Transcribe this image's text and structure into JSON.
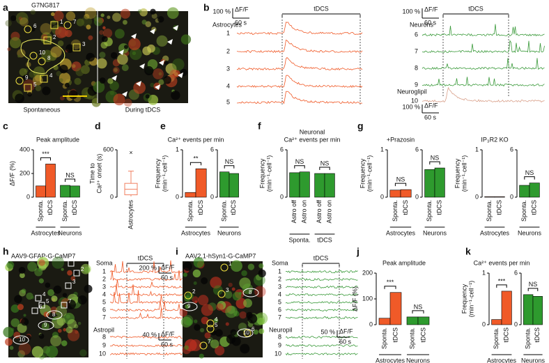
{
  "panel_letters": [
    "a",
    "b",
    "c",
    "d",
    "e",
    "f",
    "g",
    "h",
    "i",
    "j",
    "k"
  ],
  "a": {
    "sample": "G7NG817",
    "left": "Spontaneous",
    "right": "During tDCS",
    "rois": [
      "1",
      "2",
      "3",
      "4",
      "5",
      "6",
      "7",
      "8",
      "9",
      "10"
    ]
  },
  "b": {
    "stimulus": "tDCS",
    "scale_y": "100 %",
    "scale_unit": "ΔF/F",
    "scale_x": "60 s",
    "astro_label": "Astrocytes",
    "astro_traces": [
      "1",
      "2",
      "3",
      "4",
      "5"
    ],
    "neuron_label": "Neurons",
    "neuron_traces": [
      "6",
      "7",
      "8",
      "9"
    ],
    "neuropil_label": "Neuroglipil",
    "neuropil_traces": [
      "10"
    ]
  },
  "h": {
    "construct": "AAV9-GFAP-G-CaMP7",
    "stimulus": "tDCS",
    "soma_label": "Soma",
    "soma_traces": [
      "1",
      "2",
      "3",
      "4",
      "5",
      "6",
      "7"
    ],
    "pil_label": "Astropil",
    "pil_traces": [
      "8",
      "9",
      "10"
    ],
    "scale_y_soma": "200 %",
    "scale_y_pil": "40 %",
    "scale_unit": "ΔF/F",
    "scale_x": "60 s",
    "rois": [
      "1",
      "2",
      "3",
      "4",
      "5",
      "6",
      "7",
      "8",
      "9",
      "10"
    ]
  },
  "i": {
    "construct": "AAV2.1-hSyn1-G-CaMP7",
    "stimulus": "tDCS",
    "soma_label": "Soma",
    "soma_traces": [
      "1",
      "2",
      "3",
      "4",
      "5",
      "6",
      "7"
    ],
    "pil_label": "Neuropil",
    "pil_traces": [
      "8",
      "9",
      "10"
    ],
    "scale_y_pil": "50 %",
    "scale_unit": "ΔF/F",
    "scale_x": "60 s",
    "rois": [
      "1",
      "2",
      "3",
      "4",
      "5",
      "6",
      "7",
      "8",
      "9",
      "10"
    ]
  },
  "chart_data": [
    {
      "type": "bar",
      "title": "Peak amplitude",
      "ylabel": "ΔF/F (%)",
      "ylim": [
        0,
        400
      ],
      "yticks": [
        0,
        200,
        400
      ],
      "groups": [
        {
          "name": "Astrocytes",
          "categories": [
            "Sponta.",
            "tDCS"
          ],
          "values": [
            95,
            280
          ],
          "color": "#f05a28",
          "significance": "***"
        },
        {
          "name": "Neurons",
          "categories": [
            "Sponta.",
            "tDCS"
          ],
          "values": [
            100,
            95
          ],
          "color": "#2e9a2e",
          "significance": "NS"
        }
      ]
    },
    {
      "type": "box",
      "ylabel": [
        "Time to",
        "Ca²⁺ onset (s)"
      ],
      "ylim": [
        0,
        600
      ],
      "yticks": [
        0,
        600
      ],
      "category": "Astrocytes",
      "color": "#f08060",
      "box": {
        "whislo": 10,
        "q1": 30,
        "median": 100,
        "q3": 175,
        "whishi": 330,
        "fliers": [
          560
        ]
      }
    },
    {
      "type": "bar",
      "title": "Ca²⁺ events per min",
      "ylabel": [
        "Frequency",
        "(min⁻¹·cell⁻¹)"
      ],
      "ylim": [
        0,
        1
      ],
      "yticks": [
        0,
        1
      ],
      "groups": [
        {
          "name": "Astrocytes",
          "categories": [
            "Sponta.",
            "tDCS"
          ],
          "values": [
            0.1,
            0.6
          ],
          "color": "#f05a28",
          "significance": "**"
        }
      ]
    },
    {
      "type": "bar",
      "ylim": [
        0,
        6
      ],
      "yticks": [
        0,
        6
      ],
      "groups": [
        {
          "name": "Neurons",
          "categories": [
            "Sponta.",
            "tDCS"
          ],
          "values": [
            3.2,
            3.0
          ],
          "color": "#2e9a2e",
          "significance": "NS"
        }
      ]
    },
    {
      "type": "bar",
      "title": [
        "Neuronal",
        "Ca²⁺ events per min"
      ],
      "ylabel": [
        "Frequency",
        "(min⁻¹·cell⁻¹)"
      ],
      "ylim": [
        0,
        6
      ],
      "yticks": [
        0,
        6
      ],
      "groups": [
        {
          "name": "Sponta.",
          "categories": [
            "Astro off",
            "Astro on"
          ],
          "values": [
            3.1,
            3.2
          ],
          "color": "#2e9a2e",
          "significance": "NS"
        },
        {
          "name": "tDCS",
          "categories": [
            "Astro off",
            "Astro on"
          ],
          "values": [
            3.0,
            3.0
          ],
          "color": "#2e9a2e",
          "significance": "NS"
        }
      ]
    },
    {
      "type": "bar",
      "title": "+Prazosin",
      "ylabel": [
        "Frequency",
        "(min⁻¹·cell⁻¹)"
      ],
      "ylim": [
        0,
        1
      ],
      "yticks": [
        0,
        1
      ],
      "groups": [
        {
          "name": "Astrocytes",
          "categories": [
            "Sponta.",
            "tDCS"
          ],
          "values": [
            0.15,
            0.16
          ],
          "color": "#f05a28",
          "significance": "NS"
        }
      ]
    },
    {
      "type": "bar",
      "ylim": [
        0,
        6
      ],
      "yticks": [
        0,
        6
      ],
      "groups": [
        {
          "name": "Neurons",
          "categories": [
            "Sponta.",
            "tDCS"
          ],
          "values": [
            3.5,
            3.7
          ],
          "color": "#2e9a2e",
          "significance": "NS"
        }
      ]
    },
    {
      "type": "bar",
      "title": "IP₃R2 KO",
      "ylabel": [
        "Frequency",
        "(min⁻¹·cell⁻¹)"
      ],
      "ylim": [
        0,
        1
      ],
      "yticks": [
        0,
        1
      ],
      "groups": [
        {
          "name": "Astrocytes",
          "categories": [
            "Sponta.",
            "tDCS"
          ],
          "values": [
            0.01,
            0.01
          ],
          "color": "#f05a28"
        }
      ]
    },
    {
      "type": "bar",
      "ylim": [
        0,
        6
      ],
      "yticks": [
        0,
        6
      ],
      "groups": [
        {
          "name": "Neurons",
          "categories": [
            "Sponta.",
            "tDCS"
          ],
          "values": [
            1.5,
            1.8
          ],
          "color": "#2e9a2e",
          "significance": "NS"
        }
      ]
    },
    {
      "type": "bar",
      "title": "Peak amplitude",
      "ylabel": "ΔF/F (%)",
      "ylim": [
        0,
        200
      ],
      "yticks": [
        0,
        100,
        200
      ],
      "groups": [
        {
          "name": "Astrocytes",
          "categories": [
            "Sponta.",
            "tDCS"
          ],
          "values": [
            25,
            125
          ],
          "color": "#f05a28",
          "significance": "***"
        },
        {
          "name": "Neurons",
          "categories": [
            "Sponta.",
            "tDCS"
          ],
          "values": [
            30,
            30
          ],
          "color": "#2e9a2e",
          "significance": "NS"
        }
      ]
    },
    {
      "type": "bar",
      "title": "Ca²⁺ events per min",
      "ylabel": [
        "Frequency",
        "(min⁻¹·cell⁻¹)"
      ],
      "ylim": [
        0,
        1
      ],
      "yticks": [
        0,
        1
      ],
      "groups": [
        {
          "name": "Astrocytes",
          "categories": [
            "Sponta.",
            "tDCS"
          ],
          "values": [
            0.1,
            0.65
          ],
          "color": "#f05a28",
          "significance": "***"
        }
      ]
    },
    {
      "type": "bar",
      "ylim": [
        0,
        6
      ],
      "yticks": [
        0,
        6
      ],
      "groups": [
        {
          "name": "Neurons",
          "categories": [
            "Sponta.",
            "tDCS"
          ],
          "values": [
            3.5,
            3.3
          ],
          "color": "#2e9a2e",
          "significance": "NS"
        }
      ]
    }
  ]
}
